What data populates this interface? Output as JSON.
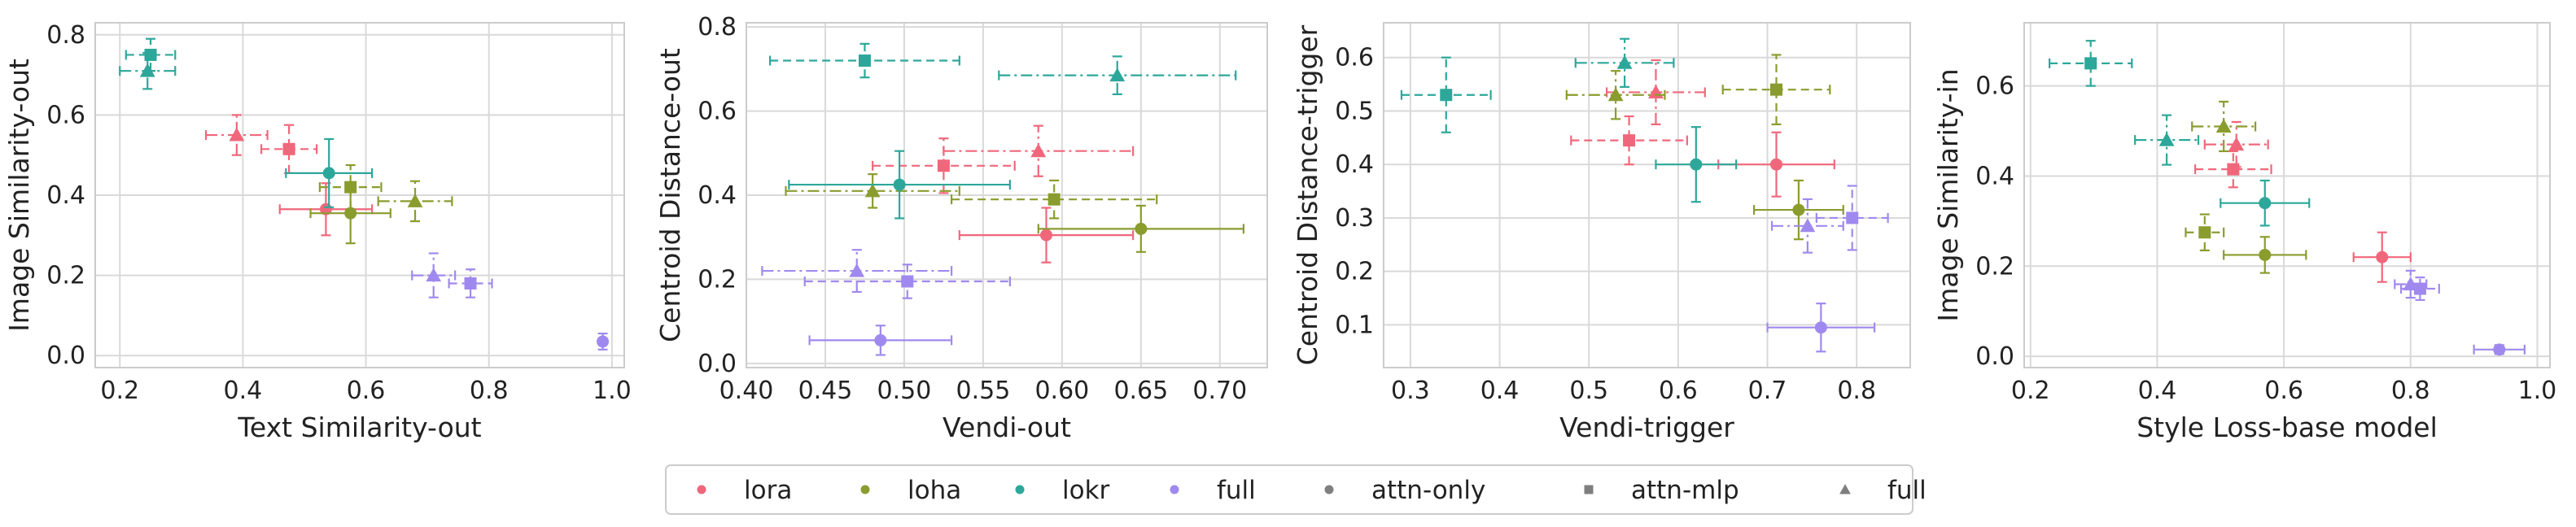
{
  "colors": {
    "lora": "#f0677b",
    "loha": "#8a9c2e",
    "lokr": "#2da79a",
    "full": "#a089ee",
    "neutral": "#7f7f7f",
    "grid": "#d9d9d9",
    "frame": "#cccccc",
    "plot_bg": "#ffffff"
  },
  "legend": {
    "placement": "bottom-center",
    "items": [
      {
        "label": "lora",
        "marker": "circle",
        "color": "lora"
      },
      {
        "label": "loha",
        "marker": "circle",
        "color": "loha"
      },
      {
        "label": "lokr",
        "marker": "circle",
        "color": "lokr"
      },
      {
        "label": "full",
        "marker": "circle",
        "color": "full"
      },
      {
        "label": "attn-only",
        "marker": "circle",
        "color": "neutral"
      },
      {
        "label": "attn-mlp",
        "marker": "square",
        "color": "neutral"
      },
      {
        "label": "full",
        "marker": "triangle",
        "color": "neutral"
      }
    ]
  },
  "chart_data": [
    {
      "type": "scatter",
      "xlabel": "Text Similarity-out",
      "ylabel": "Image Similarity-out",
      "xlim": [
        0.16,
        1.02
      ],
      "ylim": [
        -0.03,
        0.83
      ],
      "xticks": [
        "0.2",
        "0.4",
        "0.6",
        "0.8",
        "1.0"
      ],
      "yticks": [
        "0.0",
        "0.2",
        "0.4",
        "0.6",
        "0.8"
      ],
      "grid": true,
      "points": [
        {
          "algo": "lora",
          "marker": "square",
          "x": 0.475,
          "y": 0.515,
          "xerr": 0.045,
          "yerr": 0.06
        },
        {
          "algo": "lora",
          "marker": "triangle",
          "x": 0.39,
          "y": 0.55,
          "xerr": 0.05,
          "yerr": 0.05
        },
        {
          "algo": "lora",
          "marker": "circle",
          "x": 0.535,
          "y": 0.365,
          "xerr": 0.075,
          "yerr": 0.065
        },
        {
          "algo": "loha",
          "marker": "square",
          "x": 0.575,
          "y": 0.42,
          "xerr": 0.05,
          "yerr": 0.055
        },
        {
          "algo": "loha",
          "marker": "triangle",
          "x": 0.68,
          "y": 0.385,
          "xerr": 0.06,
          "yerr": 0.05
        },
        {
          "algo": "loha",
          "marker": "circle",
          "x": 0.575,
          "y": 0.355,
          "xerr": 0.065,
          "yerr": 0.075
        },
        {
          "algo": "lokr",
          "marker": "square",
          "x": 0.25,
          "y": 0.75,
          "xerr": 0.04,
          "yerr": 0.04
        },
        {
          "algo": "lokr",
          "marker": "triangle",
          "x": 0.245,
          "y": 0.71,
          "xerr": 0.045,
          "yerr": 0.045
        },
        {
          "algo": "lokr",
          "marker": "circle",
          "x": 0.54,
          "y": 0.455,
          "xerr": 0.07,
          "yerr": 0.085
        },
        {
          "algo": "full",
          "marker": "square",
          "x": 0.77,
          "y": 0.18,
          "xerr": 0.035,
          "yerr": 0.035
        },
        {
          "algo": "full",
          "marker": "triangle",
          "x": 0.71,
          "y": 0.2,
          "xerr": 0.035,
          "yerr": 0.055
        },
        {
          "algo": "full",
          "marker": "circle",
          "x": 0.985,
          "y": 0.035,
          "xerr": 0.005,
          "yerr": 0.02
        }
      ]
    },
    {
      "type": "scatter",
      "xlabel": "Vendi-out",
      "ylabel": "Centroid Distance-out",
      "xlim": [
        0.4,
        0.73
      ],
      "ylim": [
        -0.01,
        0.81
      ],
      "xticks": [
        "0.40",
        "0.45",
        "0.50",
        "0.55",
        "0.60",
        "0.65",
        "0.70"
      ],
      "yticks": [
        "0.0",
        "0.2",
        "0.4",
        "0.6",
        "0.8"
      ],
      "grid": true,
      "points": [
        {
          "algo": "lora",
          "marker": "square",
          "x": 0.525,
          "y": 0.47,
          "xerr": 0.045,
          "yerr": 0.065
        },
        {
          "algo": "lora",
          "marker": "triangle",
          "x": 0.585,
          "y": 0.505,
          "xerr": 0.06,
          "yerr": 0.06
        },
        {
          "algo": "lora",
          "marker": "circle",
          "x": 0.59,
          "y": 0.305,
          "xerr": 0.055,
          "yerr": 0.065
        },
        {
          "algo": "loha",
          "marker": "square",
          "x": 0.595,
          "y": 0.39,
          "xerr": 0.065,
          "yerr": 0.045
        },
        {
          "algo": "loha",
          "marker": "triangle",
          "x": 0.48,
          "y": 0.41,
          "xerr": 0.055,
          "yerr": 0.04
        },
        {
          "algo": "loha",
          "marker": "circle",
          "x": 0.65,
          "y": 0.32,
          "xerr": 0.065,
          "yerr": 0.055
        },
        {
          "algo": "lokr",
          "marker": "square",
          "x": 0.475,
          "y": 0.72,
          "xerr": 0.06,
          "yerr": 0.04
        },
        {
          "algo": "lokr",
          "marker": "triangle",
          "x": 0.635,
          "y": 0.685,
          "xerr": 0.075,
          "yerr": 0.045
        },
        {
          "algo": "lokr",
          "marker": "circle",
          "x": 0.497,
          "y": 0.425,
          "xerr": 0.07,
          "yerr": 0.08
        },
        {
          "algo": "full",
          "marker": "square",
          "x": 0.502,
          "y": 0.195,
          "xerr": 0.065,
          "yerr": 0.04
        },
        {
          "algo": "full",
          "marker": "triangle",
          "x": 0.47,
          "y": 0.22,
          "xerr": 0.06,
          "yerr": 0.05
        },
        {
          "algo": "full",
          "marker": "circle",
          "x": 0.485,
          "y": 0.055,
          "xerr": 0.045,
          "yerr": 0.035
        }
      ]
    },
    {
      "type": "scatter",
      "xlabel": "Vendi-trigger",
      "ylabel": "Centroid Distance-trigger",
      "xlim": [
        0.27,
        0.86
      ],
      "ylim": [
        0.02,
        0.665
      ],
      "xticks": [
        "0.3",
        "0.4",
        "0.5",
        "0.6",
        "0.7",
        "0.8"
      ],
      "yticks": [
        "0.1",
        "0.2",
        "0.3",
        "0.4",
        "0.5",
        "0.6"
      ],
      "grid": true,
      "points": [
        {
          "algo": "lora",
          "marker": "square",
          "x": 0.545,
          "y": 0.445,
          "xerr": 0.065,
          "yerr": 0.045
        },
        {
          "algo": "lora",
          "marker": "triangle",
          "x": 0.575,
          "y": 0.535,
          "xerr": 0.055,
          "yerr": 0.06
        },
        {
          "algo": "lora",
          "marker": "circle",
          "x": 0.71,
          "y": 0.4,
          "xerr": 0.065,
          "yerr": 0.06
        },
        {
          "algo": "loha",
          "marker": "square",
          "x": 0.71,
          "y": 0.54,
          "xerr": 0.06,
          "yerr": 0.065
        },
        {
          "algo": "loha",
          "marker": "triangle",
          "x": 0.53,
          "y": 0.53,
          "xerr": 0.055,
          "yerr": 0.045
        },
        {
          "algo": "loha",
          "marker": "circle",
          "x": 0.735,
          "y": 0.315,
          "xerr": 0.05,
          "yerr": 0.055
        },
        {
          "algo": "lokr",
          "marker": "square",
          "x": 0.34,
          "y": 0.53,
          "xerr": 0.05,
          "yerr": 0.07
        },
        {
          "algo": "lokr",
          "marker": "triangle",
          "x": 0.54,
          "y": 0.59,
          "xerr": 0.055,
          "yerr": 0.045
        },
        {
          "algo": "lokr",
          "marker": "circle",
          "x": 0.62,
          "y": 0.4,
          "xerr": 0.045,
          "yerr": 0.07
        },
        {
          "algo": "full",
          "marker": "square",
          "x": 0.795,
          "y": 0.3,
          "xerr": 0.04,
          "yerr": 0.06
        },
        {
          "algo": "full",
          "marker": "triangle",
          "x": 0.745,
          "y": 0.285,
          "xerr": 0.04,
          "yerr": 0.05
        },
        {
          "algo": "full",
          "marker": "circle",
          "x": 0.76,
          "y": 0.095,
          "xerr": 0.06,
          "yerr": 0.045
        }
      ]
    },
    {
      "type": "scatter",
      "xlabel": "Style Loss-base model",
      "ylabel": "Image Similarity-in",
      "xlim": [
        0.19,
        1.02
      ],
      "ylim": [
        -0.025,
        0.74
      ],
      "xticks": [
        "0.2",
        "0.4",
        "0.6",
        "0.8",
        "1.0"
      ],
      "yticks": [
        "0.0",
        "0.2",
        "0.4",
        "0.6"
      ],
      "grid": true,
      "points": [
        {
          "algo": "lora",
          "marker": "square",
          "x": 0.52,
          "y": 0.415,
          "xerr": 0.06,
          "yerr": 0.04
        },
        {
          "algo": "lora",
          "marker": "triangle",
          "x": 0.525,
          "y": 0.47,
          "xerr": 0.05,
          "yerr": 0.05
        },
        {
          "algo": "lora",
          "marker": "circle",
          "x": 0.755,
          "y": 0.22,
          "xerr": 0.045,
          "yerr": 0.055
        },
        {
          "algo": "loha",
          "marker": "square",
          "x": 0.475,
          "y": 0.275,
          "xerr": 0.03,
          "yerr": 0.04
        },
        {
          "algo": "loha",
          "marker": "triangle",
          "x": 0.505,
          "y": 0.51,
          "xerr": 0.05,
          "yerr": 0.055
        },
        {
          "algo": "loha",
          "marker": "circle",
          "x": 0.57,
          "y": 0.225,
          "xerr": 0.065,
          "yerr": 0.04
        },
        {
          "algo": "lokr",
          "marker": "square",
          "x": 0.295,
          "y": 0.65,
          "xerr": 0.065,
          "yerr": 0.05
        },
        {
          "algo": "lokr",
          "marker": "triangle",
          "x": 0.415,
          "y": 0.48,
          "xerr": 0.05,
          "yerr": 0.055
        },
        {
          "algo": "lokr",
          "marker": "circle",
          "x": 0.57,
          "y": 0.34,
          "xerr": 0.07,
          "yerr": 0.05
        },
        {
          "algo": "full",
          "marker": "square",
          "x": 0.815,
          "y": 0.15,
          "xerr": 0.03,
          "yerr": 0.025
        },
        {
          "algo": "full",
          "marker": "triangle",
          "x": 0.8,
          "y": 0.16,
          "xerr": 0.025,
          "yerr": 0.03
        },
        {
          "algo": "full",
          "marker": "circle",
          "x": 0.94,
          "y": 0.015,
          "xerr": 0.04,
          "yerr": 0.01
        }
      ]
    }
  ]
}
